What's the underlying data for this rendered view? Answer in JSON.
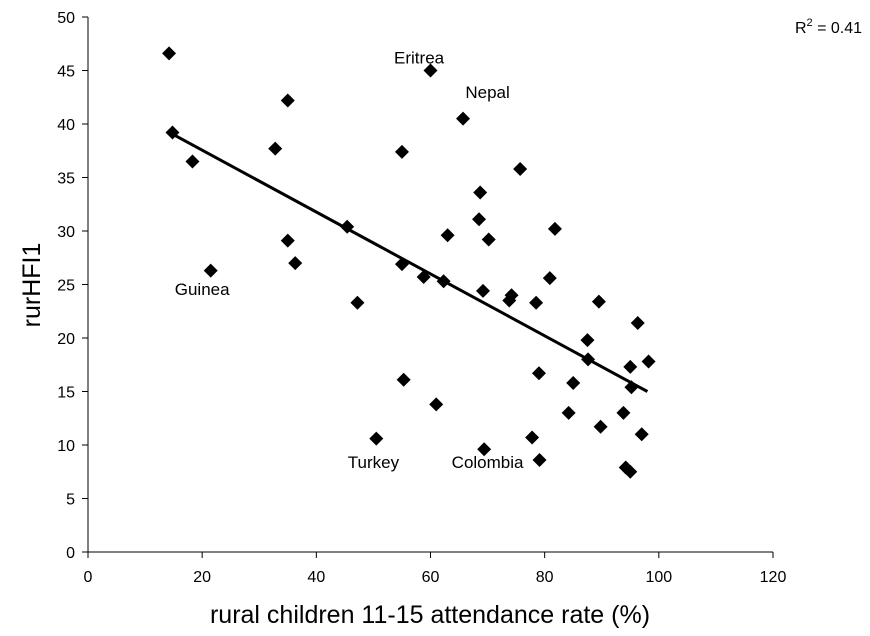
{
  "chart_data": {
    "type": "scatter",
    "xlabel": "rural children 11-15 attendance rate (%)",
    "ylabel": "rurHFI1",
    "xlim": [
      0,
      120
    ],
    "ylim": [
      0,
      50
    ],
    "x_ticks": [
      0,
      20,
      40,
      60,
      80,
      100,
      120
    ],
    "y_ticks": [
      0,
      5,
      10,
      15,
      20,
      25,
      30,
      35,
      40,
      45,
      50
    ],
    "grid": false,
    "marker": "diamond",
    "marker_color": "#000000",
    "r_squared_label": {
      "prefix": "R",
      "sup": "2",
      "suffix": " = 0.41"
    },
    "trendline": {
      "x": [
        15,
        98
      ],
      "y": [
        39.0,
        15.0
      ]
    },
    "annotations": [
      {
        "text": "Eritrea",
        "x": 58,
        "y": 46.2
      },
      {
        "text": "Nepal",
        "x": 70,
        "y": 43.0
      },
      {
        "text": "Guinea",
        "x": 20,
        "y": 24.6
      },
      {
        "text": "Turkey",
        "x": 50,
        "y": 8.4
      },
      {
        "text": "Colombia",
        "x": 70,
        "y": 8.4
      }
    ],
    "points": [
      {
        "x": 14.2,
        "y": 46.6
      },
      {
        "x": 14.8,
        "y": 39.2
      },
      {
        "x": 18.3,
        "y": 36.5
      },
      {
        "x": 21.5,
        "y": 26.3
      },
      {
        "x": 32.8,
        "y": 37.7
      },
      {
        "x": 35.0,
        "y": 42.2
      },
      {
        "x": 35.0,
        "y": 29.1
      },
      {
        "x": 36.3,
        "y": 27.0
      },
      {
        "x": 45.4,
        "y": 30.4
      },
      {
        "x": 47.2,
        "y": 23.3
      },
      {
        "x": 50.5,
        "y": 10.6
      },
      {
        "x": 55.0,
        "y": 37.4
      },
      {
        "x": 55.0,
        "y": 26.9
      },
      {
        "x": 55.3,
        "y": 16.1
      },
      {
        "x": 58.8,
        "y": 25.7
      },
      {
        "x": 60.0,
        "y": 45.0
      },
      {
        "x": 61.0,
        "y": 13.8
      },
      {
        "x": 62.3,
        "y": 25.3
      },
      {
        "x": 63.0,
        "y": 29.6
      },
      {
        "x": 65.7,
        "y": 40.5
      },
      {
        "x": 68.5,
        "y": 31.1
      },
      {
        "x": 68.7,
        "y": 33.6
      },
      {
        "x": 69.2,
        "y": 24.4
      },
      {
        "x": 69.4,
        "y": 9.6
      },
      {
        "x": 70.2,
        "y": 29.2
      },
      {
        "x": 73.8,
        "y": 23.5
      },
      {
        "x": 74.2,
        "y": 24.0
      },
      {
        "x": 75.7,
        "y": 35.8
      },
      {
        "x": 77.8,
        "y": 10.7
      },
      {
        "x": 78.5,
        "y": 23.3
      },
      {
        "x": 79.0,
        "y": 16.7
      },
      {
        "x": 79.1,
        "y": 8.6
      },
      {
        "x": 80.9,
        "y": 25.6
      },
      {
        "x": 81.8,
        "y": 30.2
      },
      {
        "x": 84.2,
        "y": 13.0
      },
      {
        "x": 85.0,
        "y": 15.8
      },
      {
        "x": 87.5,
        "y": 19.8
      },
      {
        "x": 87.6,
        "y": 18.0
      },
      {
        "x": 89.5,
        "y": 23.4
      },
      {
        "x": 89.8,
        "y": 11.7
      },
      {
        "x": 93.8,
        "y": 13.0
      },
      {
        "x": 94.2,
        "y": 7.9
      },
      {
        "x": 95.0,
        "y": 7.5
      },
      {
        "x": 95.0,
        "y": 17.3
      },
      {
        "x": 95.2,
        "y": 15.4
      },
      {
        "x": 96.3,
        "y": 21.4
      },
      {
        "x": 97.0,
        "y": 11.0
      },
      {
        "x": 98.2,
        "y": 17.8
      }
    ]
  }
}
